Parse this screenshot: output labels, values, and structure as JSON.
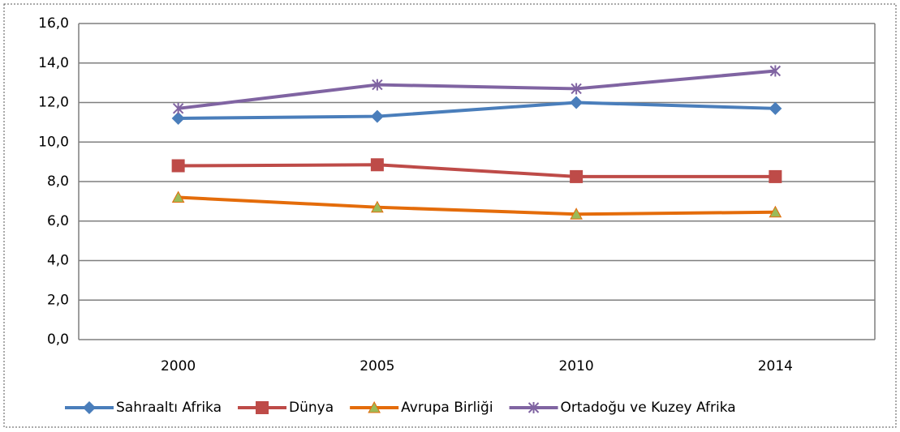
{
  "chart_data": {
    "type": "line",
    "categories": [
      "2000",
      "2005",
      "2010",
      "2014"
    ],
    "series": [
      {
        "name": "Sahraaltı Afrika",
        "color": "#4a7ebb",
        "marker": "diamond",
        "marker_color": "#4a7ebb",
        "values": [
          11.2,
          11.3,
          12.0,
          11.7
        ]
      },
      {
        "name": "Dünya",
        "color": "#be4b48",
        "marker": "square",
        "marker_color": "#be4b48",
        "values": [
          8.8,
          8.85,
          8.25,
          8.25
        ]
      },
      {
        "name": "Avrupa Birliği",
        "color": "#e46c0a",
        "marker": "triangle",
        "marker_color": "#9bbb59",
        "values": [
          7.2,
          6.7,
          6.35,
          6.45
        ]
      },
      {
        "name": "Ortadoğu ve Kuzey Afrika",
        "color": "#8064a2",
        "marker": "star",
        "marker_color": "#8064a2",
        "values": [
          11.7,
          12.9,
          12.7,
          13.6
        ]
      }
    ],
    "ylim": [
      0,
      16
    ],
    "yticks": [
      {
        "value": 0,
        "label": "0,0"
      },
      {
        "value": 2,
        "label": "2,0"
      },
      {
        "value": 4,
        "label": "4,0"
      },
      {
        "value": 6,
        "label": "6,0"
      },
      {
        "value": 8,
        "label": "8,0"
      },
      {
        "value": 10,
        "label": "10,0"
      },
      {
        "value": 12,
        "label": "12,0"
      },
      {
        "value": 14,
        "label": "14,0"
      },
      {
        "value": 16,
        "label": "16,0"
      }
    ],
    "grid": true,
    "legend": "bottom"
  }
}
